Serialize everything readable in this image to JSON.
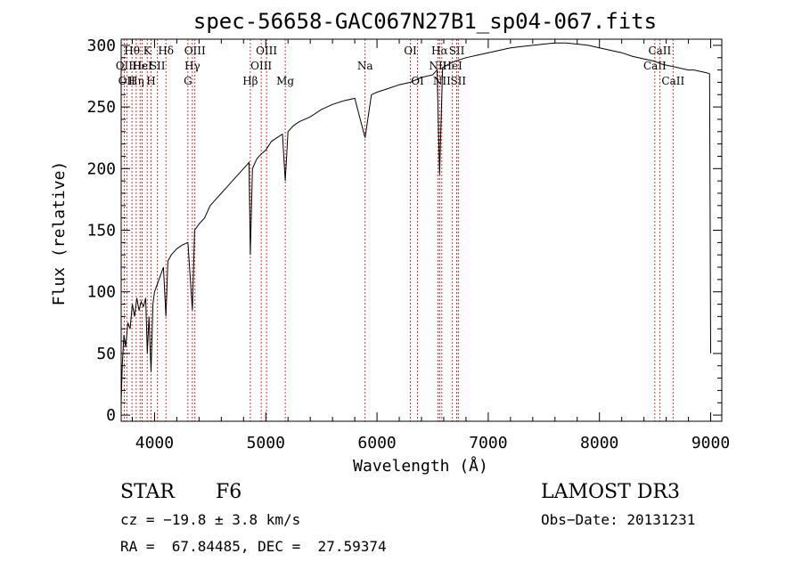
{
  "chart_data": {
    "type": "line",
    "title": "spec-56658-GAC067N27B1_sp04-067.fits",
    "xlabel": "Wavelength (Å)",
    "ylabel": "Flux (relative)",
    "xlim": [
      3700,
      9100
    ],
    "ylim": [
      -5,
      305
    ],
    "xticks": [
      4000,
      5000,
      6000,
      7000,
      8000,
      9000
    ],
    "yticks": [
      0,
      50,
      100,
      150,
      200,
      250,
      300
    ],
    "series": [
      {
        "name": "spectrum",
        "x": [
          3700,
          3710,
          3725,
          3740,
          3760,
          3780,
          3800,
          3820,
          3840,
          3860,
          3880,
          3900,
          3920,
          3935,
          3950,
          3968,
          3985,
          4000,
          4020,
          4040,
          4060,
          4080,
          4102,
          4120,
          4150,
          4200,
          4250,
          4300,
          4340,
          4360,
          4400,
          4450,
          4500,
          4550,
          4600,
          4650,
          4700,
          4750,
          4800,
          4850,
          4861,
          4880,
          4920,
          4960,
          5000,
          5050,
          5100,
          5150,
          5175,
          5200,
          5250,
          5300,
          5400,
          5500,
          5600,
          5700,
          5800,
          5893,
          5950,
          6000,
          6100,
          6200,
          6300,
          6400,
          6500,
          6540,
          6563,
          6590,
          6650,
          6700,
          6800,
          6900,
          7000,
          7100,
          7200,
          7300,
          7400,
          7500,
          7600,
          7700,
          7800,
          7900,
          8000,
          8100,
          8200,
          8300,
          8400,
          8500,
          8550,
          8600,
          8650,
          8700,
          8750,
          8800,
          8850,
          8900,
          8950,
          8990,
          9000
        ],
        "y": [
          10,
          40,
          65,
          55,
          75,
          70,
          90,
          80,
          95,
          85,
          92,
          88,
          95,
          50,
          80,
          35,
          90,
          100,
          105,
          110,
          115,
          120,
          80,
          125,
          130,
          135,
          138,
          140,
          85,
          150,
          155,
          160,
          170,
          175,
          180,
          185,
          190,
          195,
          200,
          205,
          130,
          200,
          208,
          212,
          215,
          222,
          225,
          228,
          190,
          230,
          235,
          238,
          242,
          248,
          252,
          255,
          257,
          225,
          260,
          262,
          265,
          268,
          270,
          274,
          276,
          280,
          195,
          282,
          285,
          287,
          290,
          292,
          294,
          296,
          298,
          299,
          300,
          301,
          302,
          302,
          301,
          300,
          298,
          296,
          294,
          291,
          289,
          287,
          285,
          284,
          283,
          282,
          281,
          280,
          280,
          279,
          278,
          277,
          50
        ]
      }
    ],
    "spectral_lines": [
      {
        "wavelength": 3727,
        "label": "OII",
        "row": 2
      },
      {
        "wavelength": 3750,
        "label": "OII",
        "row": 3
      },
      {
        "wavelength": 3797,
        "label": "Hθ",
        "row": 1
      },
      {
        "wavelength": 3835,
        "label": "Hη",
        "row": 3
      },
      {
        "wavelength": 3870,
        "label": "Hε",
        "row": 2
      },
      {
        "wavelength": 3889,
        "label": "HeI",
        "row": 2
      },
      {
        "wavelength": 3934,
        "label": "K",
        "row": 1
      },
      {
        "wavelength": 3968,
        "label": "H",
        "row": 3
      },
      {
        "wavelength": 4026,
        "label": "SII",
        "row": 2
      },
      {
        "wavelength": 4102,
        "label": "Hδ",
        "row": 1
      },
      {
        "wavelength": 4300,
        "label": "G",
        "row": 3
      },
      {
        "wavelength": 4340,
        "label": "Hγ",
        "row": 2
      },
      {
        "wavelength": 4363,
        "label": "OIII",
        "row": 1
      },
      {
        "wavelength": 4861,
        "label": "Hβ",
        "row": 3
      },
      {
        "wavelength": 4959,
        "label": "OIII",
        "row": 2
      },
      {
        "wavelength": 5007,
        "label": "OIII",
        "row": 1
      },
      {
        "wavelength": 5175,
        "label": "Mg",
        "row": 3
      },
      {
        "wavelength": 5893,
        "label": "Na",
        "row": 2
      },
      {
        "wavelength": 6300,
        "label": "OI",
        "row": 1
      },
      {
        "wavelength": 6364,
        "label": "OI",
        "row": 3
      },
      {
        "wavelength": 6548,
        "label": "NII",
        "row": 2
      },
      {
        "wavelength": 6563,
        "label": "Hα",
        "row": 1
      },
      {
        "wavelength": 6583,
        "label": "NII",
        "row": 3
      },
      {
        "wavelength": 6678,
        "label": "HeI",
        "row": 2
      },
      {
        "wavelength": 6717,
        "label": "SII",
        "row": 1
      },
      {
        "wavelength": 6731,
        "label": "SII",
        "row": 3
      },
      {
        "wavelength": 8498,
        "label": "CaII",
        "row": 2
      },
      {
        "wavelength": 8542,
        "label": "CaII",
        "row": 1
      },
      {
        "wavelength": 8662,
        "label": "CaII",
        "row": 3
      }
    ]
  },
  "info": {
    "object_class": "STAR",
    "subclass": "F6",
    "survey": "LAMOST DR3",
    "redshift": "cz = −19.8 ± 3.8 km/s",
    "obs_date": "Obs−Date: 20131231",
    "coords": "RA =  67.84485, DEC =  27.59374"
  },
  "colors": {
    "spectrum": "#000000",
    "line_marker": "#cc0000"
  }
}
